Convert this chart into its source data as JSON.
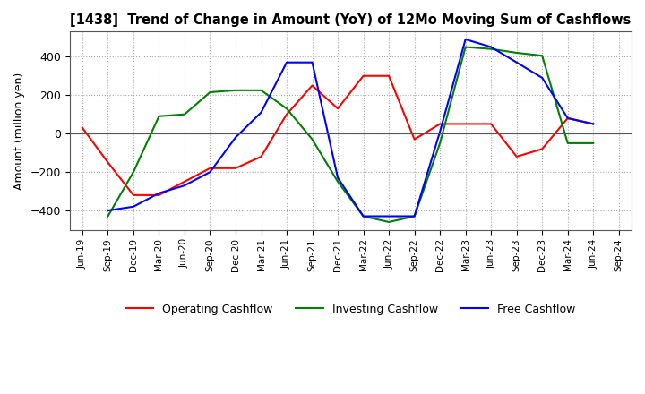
{
  "title": "[1438]  Trend of Change in Amount (YoY) of 12Mo Moving Sum of Cashflows",
  "ylabel": "Amount (million yen)",
  "ylim": [
    -500,
    530
  ],
  "yticks": [
    -400,
    -200,
    0,
    200,
    400
  ],
  "x_labels": [
    "Jun-19",
    "Sep-19",
    "Dec-19",
    "Mar-20",
    "Jun-20",
    "Sep-20",
    "Dec-20",
    "Mar-21",
    "Jun-21",
    "Sep-21",
    "Dec-21",
    "Mar-22",
    "Jun-22",
    "Sep-22",
    "Dec-22",
    "Mar-23",
    "Jun-23",
    "Sep-23",
    "Dec-23",
    "Mar-24",
    "Jun-24",
    "Sep-24"
  ],
  "operating": [
    30,
    -150,
    -320,
    -320,
    -250,
    -180,
    -180,
    -120,
    100,
    250,
    130,
    300,
    300,
    -30,
    50,
    50,
    50,
    -120,
    -80,
    80,
    50,
    null
  ],
  "investing": [
    null,
    -430,
    -200,
    90,
    100,
    215,
    225,
    225,
    130,
    -30,
    -250,
    -430,
    -460,
    -430,
    -50,
    450,
    440,
    420,
    405,
    -50,
    -50,
    null
  ],
  "free": [
    null,
    -400,
    -380,
    -310,
    -270,
    -200,
    -20,
    110,
    370,
    370,
    -230,
    -430,
    -430,
    -430,
    10,
    490,
    450,
    370,
    290,
    80,
    50,
    null
  ],
  "colors": {
    "operating": "#ff0000",
    "investing": "#008000",
    "free": "#0000ff"
  },
  "legend_labels": [
    "Operating Cashflow",
    "Investing Cashflow",
    "Free Cashflow"
  ],
  "grid_color": "#aaaaaa",
  "background_color": "#ffffff"
}
